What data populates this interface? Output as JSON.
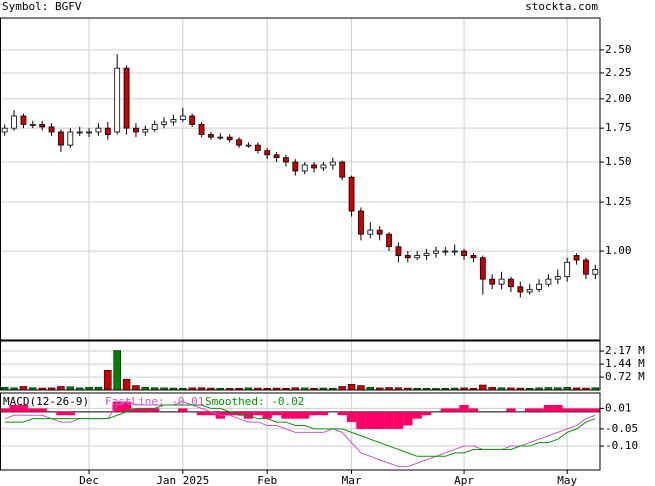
{
  "chart_data": [
    {
      "type": "candlestick",
      "title": "Symbol: BGFV",
      "source": "stockta.com",
      "categories": [
        null,
        null,
        null,
        null,
        null,
        null,
        null,
        null,
        null,
        "Dec",
        null,
        null,
        null,
        null,
        null,
        null,
        null,
        null,
        null,
        "Jan 2025",
        null,
        null,
        null,
        null,
        null,
        null,
        null,
        null,
        "Feb",
        null,
        null,
        null,
        null,
        null,
        null,
        null,
        null,
        "Mar",
        null,
        null,
        null,
        null,
        null,
        null,
        null,
        null,
        null,
        null,
        null,
        "Apr",
        null,
        null,
        null,
        null,
        null,
        null,
        null,
        null,
        null,
        null,
        "May",
        null,
        null,
        null
      ],
      "open": [
        1.72,
        1.75,
        1.85,
        1.78,
        1.78,
        1.76,
        1.72,
        1.62,
        1.72,
        1.72,
        1.72,
        1.75,
        1.72,
        2.3,
        1.75,
        1.72,
        1.74,
        1.78,
        1.8,
        1.82,
        1.85,
        1.78,
        1.7,
        1.68,
        1.68,
        1.66,
        1.62,
        1.62,
        1.58,
        1.55,
        1.53,
        1.5,
        1.44,
        1.48,
        1.46,
        1.48,
        1.5,
        1.4,
        1.2,
        1.08,
        1.1,
        1.08,
        1.02,
        0.98,
        0.97,
        0.98,
        0.99,
        1.0,
        1.0,
        1.0,
        0.98,
        0.97,
        0.88,
        0.86,
        0.88,
        0.85,
        0.83,
        0.84,
        0.86,
        0.88,
        0.89,
        0.98,
        0.96,
        0.9
      ],
      "high": [
        1.78,
        1.9,
        1.87,
        1.81,
        1.81,
        1.79,
        1.74,
        1.75,
        1.76,
        1.75,
        1.79,
        1.8,
        2.45,
        2.33,
        1.79,
        1.77,
        1.81,
        1.84,
        1.86,
        1.92,
        1.87,
        1.8,
        1.72,
        1.71,
        1.7,
        1.68,
        1.64,
        1.64,
        1.6,
        1.57,
        1.55,
        1.52,
        1.5,
        1.5,
        1.5,
        1.53,
        1.51,
        1.41,
        1.22,
        1.14,
        1.12,
        1.09,
        1.04,
        1.0,
        1.0,
        1.01,
        1.02,
        1.02,
        1.03,
        1.01,
        0.99,
        0.98,
        0.9,
        0.91,
        0.89,
        0.87,
        0.86,
        0.88,
        0.9,
        0.92,
        0.97,
        0.99,
        0.97,
        0.94
      ],
      "low": [
        1.69,
        1.73,
        1.75,
        1.75,
        1.73,
        1.69,
        1.57,
        1.6,
        1.69,
        1.68,
        1.69,
        1.66,
        1.7,
        1.7,
        1.68,
        1.69,
        1.72,
        1.75,
        1.77,
        1.8,
        1.76,
        1.68,
        1.66,
        1.66,
        1.64,
        1.6,
        1.6,
        1.56,
        1.52,
        1.5,
        1.47,
        1.41,
        1.42,
        1.43,
        1.44,
        1.45,
        1.38,
        1.17,
        1.05,
        1.06,
        1.05,
        1.0,
        0.95,
        0.95,
        0.96,
        0.96,
        0.97,
        0.98,
        0.98,
        0.96,
        0.95,
        0.82,
        0.84,
        0.84,
        0.83,
        0.81,
        0.82,
        0.83,
        0.85,
        0.86,
        0.87,
        0.94,
        0.88,
        0.88
      ],
      "close": [
        1.75,
        1.85,
        1.78,
        1.78,
        1.76,
        1.72,
        1.62,
        1.72,
        1.72,
        1.72,
        1.75,
        1.7,
        2.3,
        1.75,
        1.72,
        1.74,
        1.78,
        1.8,
        1.82,
        1.85,
        1.78,
        1.7,
        1.68,
        1.68,
        1.66,
        1.62,
        1.62,
        1.58,
        1.55,
        1.53,
        1.5,
        1.44,
        1.48,
        1.46,
        1.48,
        1.5,
        1.4,
        1.2,
        1.08,
        1.1,
        1.08,
        1.02,
        0.98,
        0.97,
        0.98,
        0.99,
        1.0,
        1.0,
        1.0,
        0.98,
        0.97,
        0.88,
        0.86,
        0.88,
        0.85,
        0.83,
        0.84,
        0.86,
        0.88,
        0.89,
        0.95,
        0.96,
        0.9,
        0.92
      ],
      "up_color": "#ffffff",
      "down_color": "#cc0000",
      "ylim": [
        0.667,
        2.89
      ],
      "log_scale": true,
      "grid": true,
      "yticks": [
        {
          "value": 2.5,
          "label": "2.50"
        },
        {
          "value": 2.25,
          "label": "2.25"
        },
        {
          "value": 2,
          "label": "2.00"
        },
        {
          "value": 1.75,
          "label": "1.75"
        },
        {
          "value": 1.5,
          "label": "1.50"
        },
        {
          "value": 1.25,
          "label": "1.25"
        },
        {
          "value": 1,
          "label": "1.00"
        }
      ]
    },
    {
      "type": "volume",
      "values": [
        150000,
        120000,
        200000,
        130000,
        110000,
        120000,
        200000,
        180000,
        120000,
        150000,
        160000,
        1100000,
        2200000,
        600000,
        250000,
        150000,
        130000,
        120000,
        110000,
        100000,
        120000,
        130000,
        110000,
        100000,
        90000,
        100000,
        120000,
        110000,
        100000,
        110000,
        100000,
        130000,
        120000,
        100000,
        110000,
        100000,
        200000,
        320000,
        250000,
        150000,
        120000,
        140000,
        130000,
        110000,
        100000,
        100000,
        90000,
        100000,
        110000,
        120000,
        100000,
        280000,
        150000,
        130000,
        120000,
        110000,
        100000,
        120000,
        140000,
        130000,
        150000,
        120000,
        110000,
        130000
      ],
      "up_color": "#008000",
      "down_color": "#cc0000",
      "ylim": [
        0,
        2730000
      ],
      "yticks": [
        {
          "value": 2170000,
          "label": "2.17 M"
        },
        {
          "value": 1440000,
          "label": "1.44 M"
        },
        {
          "value": 720000,
          "label": "0.72 M"
        }
      ]
    },
    {
      "type": "macd",
      "title": "MACD(12-26-9)",
      "histogram": {
        "color": "#ff0066",
        "values": [
          0.01,
          0.02,
          0.02,
          0.01,
          0.01,
          0,
          -0.01,
          -0.01,
          0,
          0,
          0,
          0,
          0.03,
          0.03,
          0.01,
          0.01,
          0.01,
          0,
          0,
          0.01,
          0,
          -0.01,
          -0.01,
          -0.02,
          -0.01,
          -0.01,
          -0.02,
          -0.01,
          -0.02,
          -0.01,
          -0.02,
          -0.02,
          -0.02,
          -0.01,
          -0.01,
          0,
          -0.01,
          -0.03,
          -0.05,
          -0.05,
          -0.05,
          -0.05,
          -0.05,
          -0.04,
          -0.02,
          -0.01,
          0,
          0.01,
          0.01,
          0.02,
          0.01,
          0,
          0,
          0,
          0.01,
          0,
          0.01,
          0.01,
          0.02,
          0.02,
          0.01,
          0.01,
          0.01,
          0.01
        ]
      },
      "series": [
        {
          "name": "FastLine: -0.01",
          "color": "#cc55cc",
          "values": [
            -0.02,
            -0.01,
            -0.01,
            -0.01,
            -0.01,
            -0.02,
            -0.03,
            -0.03,
            -0.02,
            -0.02,
            -0.02,
            -0.02,
            0.02,
            0.03,
            0.02,
            0.02,
            0.02,
            0.02,
            0.02,
            0.03,
            0.02,
            0.01,
            0,
            -0.01,
            -0.01,
            -0.02,
            -0.03,
            -0.03,
            -0.04,
            -0.04,
            -0.05,
            -0.06,
            -0.06,
            -0.06,
            -0.06,
            -0.05,
            -0.06,
            -0.09,
            -0.12,
            -0.13,
            -0.14,
            -0.15,
            -0.16,
            -0.16,
            -0.15,
            -0.14,
            -0.13,
            -0.12,
            -0.11,
            -0.1,
            -0.1,
            -0.11,
            -0.11,
            -0.11,
            -0.1,
            -0.1,
            -0.09,
            -0.08,
            -0.07,
            -0.06,
            -0.05,
            -0.04,
            -0.02,
            -0.01
          ]
        },
        {
          "name": "Smoothed: -0.02",
          "color": "#009900",
          "values": [
            -0.03,
            -0.03,
            -0.03,
            -0.02,
            -0.02,
            -0.02,
            -0.02,
            -0.02,
            -0.02,
            -0.02,
            -0.02,
            -0.02,
            -0.01,
            0,
            0.01,
            0.01,
            0.01,
            0.02,
            0.02,
            0.02,
            0.02,
            0.02,
            0.01,
            0.01,
            0,
            -0.01,
            -0.01,
            -0.02,
            -0.02,
            -0.03,
            -0.03,
            -0.04,
            -0.04,
            -0.05,
            -0.05,
            -0.05,
            -0.05,
            -0.06,
            -0.07,
            -0.08,
            -0.09,
            -0.1,
            -0.11,
            -0.12,
            -0.13,
            -0.13,
            -0.13,
            -0.13,
            -0.12,
            -0.12,
            -0.11,
            -0.11,
            -0.11,
            -0.11,
            -0.11,
            -0.1,
            -0.1,
            -0.09,
            -0.09,
            -0.08,
            -0.06,
            -0.05,
            -0.03,
            -0.02
          ]
        }
      ],
      "ylim": [
        -0.17,
        0.055
      ],
      "yticks": [
        0.01,
        -0.05,
        {
          "value": -0.1,
          "label": "-0.10"
        }
      ]
    }
  ]
}
